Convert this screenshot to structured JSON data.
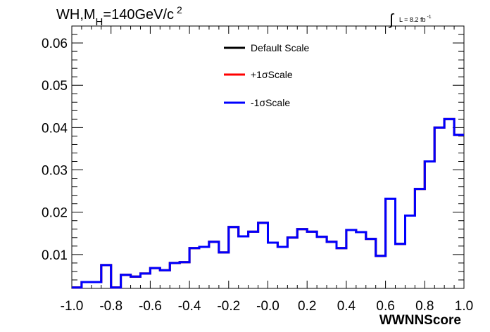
{
  "figure": {
    "title": "WH,M",
    "title_sub": "H",
    "title_rest": "=140GeV/c",
    "title_sup": "2",
    "lumi_prefix": "∫",
    "lumi_text": "L = 8.2 fb",
    "lumi_sup": "-1"
  },
  "chart_data": {
    "type": "line",
    "title": "WH,MH=140GeV/c2",
    "xlabel": "WWNNScore",
    "ylabel": "",
    "xlim": [
      -1.0,
      1.0
    ],
    "ylim": [
      0.002,
      0.064
    ],
    "x_ticks": [
      "-1.0",
      "-0.8",
      "-0.6",
      "-0.4",
      "-0.2",
      "-0.0",
      "0.2",
      "0.4",
      "0.6",
      "0.8",
      "1.0"
    ],
    "y_ticks": [
      "0.01",
      "0.02",
      "0.03",
      "0.04",
      "0.05",
      "0.06"
    ],
    "bin_edges": [
      -1.0,
      -0.95,
      -0.9,
      -0.85,
      -0.8,
      -0.75,
      -0.7,
      -0.65,
      -0.6,
      -0.55,
      -0.5,
      -0.45,
      -0.4,
      -0.35,
      -0.3,
      -0.25,
      -0.2,
      -0.15,
      -0.1,
      -0.05,
      0.0,
      0.05,
      0.1,
      0.15,
      0.2,
      0.25,
      0.3,
      0.35,
      0.4,
      0.45,
      0.5,
      0.55,
      0.6,
      0.65,
      0.7,
      0.75,
      0.8,
      0.85,
      0.9,
      0.95,
      1.0
    ],
    "series": [
      {
        "name": "Default Scale",
        "color": "#000000",
        "values": [
          0.0022,
          0.0035,
          0.0035,
          0.0075,
          0.0022,
          0.0052,
          0.0048,
          0.0055,
          0.0068,
          0.0063,
          0.008,
          0.0082,
          0.0115,
          0.0118,
          0.013,
          0.0105,
          0.0165,
          0.0143,
          0.0154,
          0.0175,
          0.0128,
          0.0118,
          0.014,
          0.016,
          0.0154,
          0.0142,
          0.013,
          0.0115,
          0.0158,
          0.0153,
          0.0137,
          0.0097,
          0.0232,
          0.0125,
          0.0192,
          0.0255,
          0.032,
          0.04,
          0.042,
          0.0383
        ]
      },
      {
        "name": "+1σScale",
        "color": "#ff0000",
        "values": [
          0.0022,
          0.0035,
          0.0035,
          0.0075,
          0.0022,
          0.0052,
          0.0048,
          0.0055,
          0.0068,
          0.0063,
          0.008,
          0.0082,
          0.0115,
          0.0118,
          0.013,
          0.0105,
          0.0165,
          0.0143,
          0.0154,
          0.0175,
          0.0128,
          0.0118,
          0.014,
          0.016,
          0.0154,
          0.0142,
          0.013,
          0.0115,
          0.0158,
          0.0153,
          0.0137,
          0.0097,
          0.0232,
          0.0125,
          0.0192,
          0.0255,
          0.032,
          0.04,
          0.042,
          0.0383
        ]
      },
      {
        "name": "-1σScale",
        "color": "#0000ff",
        "values": [
          0.0022,
          0.0035,
          0.0035,
          0.0075,
          0.0022,
          0.0052,
          0.0048,
          0.0055,
          0.0068,
          0.0063,
          0.008,
          0.0082,
          0.0115,
          0.0118,
          0.013,
          0.0105,
          0.0165,
          0.0143,
          0.0154,
          0.0175,
          0.0128,
          0.0118,
          0.014,
          0.016,
          0.0154,
          0.0142,
          0.013,
          0.0115,
          0.0158,
          0.0153,
          0.0137,
          0.0097,
          0.0232,
          0.0125,
          0.0192,
          0.0255,
          0.032,
          0.04,
          0.042,
          0.0383
        ]
      }
    ],
    "legend_position": "top-center",
    "grid": false
  }
}
